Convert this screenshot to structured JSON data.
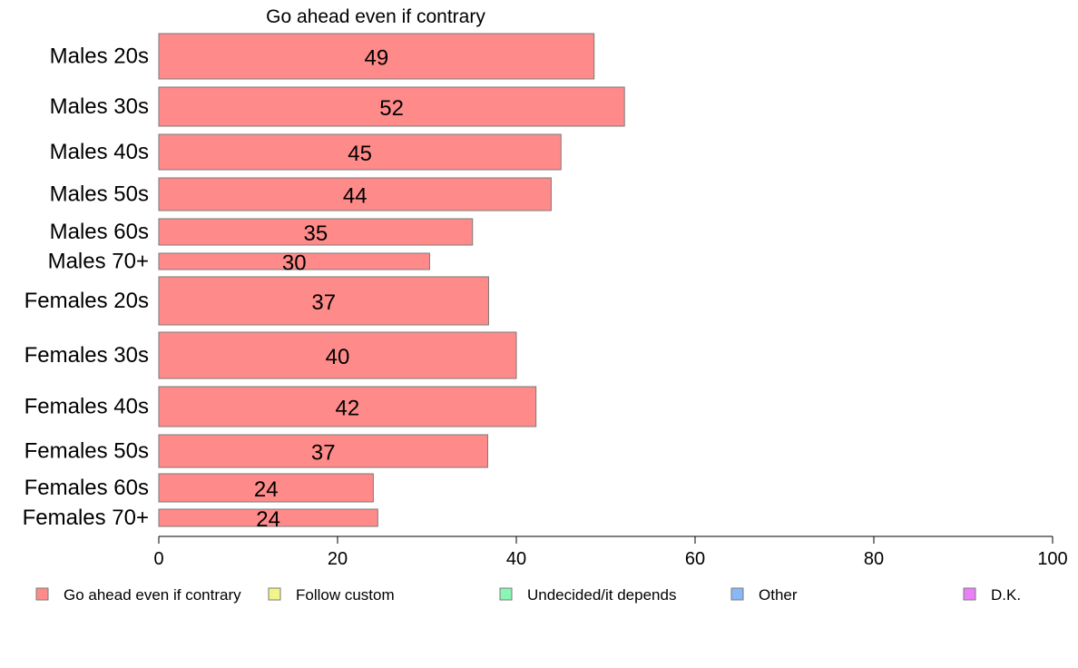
{
  "chart_data": {
    "type": "bar",
    "orientation": "horizontal",
    "title": "Go ahead even if contrary",
    "categories": [
      "Males 20s",
      "Males 30s",
      "Males 40s",
      "Males 50s",
      "Males 60s",
      "Males 70+",
      "Females 20s",
      "Females 30s",
      "Females 40s",
      "Females 50s",
      "Females 60s",
      "Females 70+"
    ],
    "values": [
      48.7,
      52.1,
      45.0,
      43.9,
      35.1,
      30.3,
      36.9,
      40.0,
      42.2,
      36.8,
      24.0,
      24.5
    ],
    "value_labels": [
      "49",
      "52",
      "45",
      "44",
      "35",
      "30",
      "37",
      "40",
      "42",
      "37",
      "24",
      "24"
    ],
    "xlim": [
      0,
      100
    ],
    "xticks": [
      "0",
      "20",
      "40",
      "60",
      "80",
      "100"
    ],
    "grid": false,
    "bar_color": "#ff8a8a",
    "legend_position": "bottom",
    "legend": [
      {
        "label": "Go ahead even if contrary",
        "color": "#ff8a8a"
      },
      {
        "label": "Follow custom",
        "color": "#f0f58a"
      },
      {
        "label": "Undecided/it depends",
        "color": "#8af5b5"
      },
      {
        "label": "Other",
        "color": "#8ab8f5"
      },
      {
        "label": "D.K.",
        "color": "#ea80f5"
      }
    ]
  }
}
